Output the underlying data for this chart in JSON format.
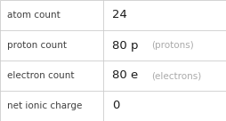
{
  "rows": [
    {
      "label": "atom count",
      "value": "24",
      "suffix": ""
    },
    {
      "label": "proton count",
      "value": "80 p",
      "suffix": "(protons)"
    },
    {
      "label": "electron count",
      "value": "80 e",
      "suffix": "(electrons)"
    },
    {
      "label": "net ionic charge",
      "value": "0",
      "suffix": ""
    }
  ],
  "col_split": 0.455,
  "bg_color": "#f9f9f9",
  "cell_bg": "#ffffff",
  "border_color": "#cccccc",
  "label_color": "#404040",
  "value_color": "#1a1a1a",
  "suffix_color": "#aaaaaa",
  "label_fontsize": 7.5,
  "value_fontsize": 9.5,
  "suffix_fontsize": 7.5
}
